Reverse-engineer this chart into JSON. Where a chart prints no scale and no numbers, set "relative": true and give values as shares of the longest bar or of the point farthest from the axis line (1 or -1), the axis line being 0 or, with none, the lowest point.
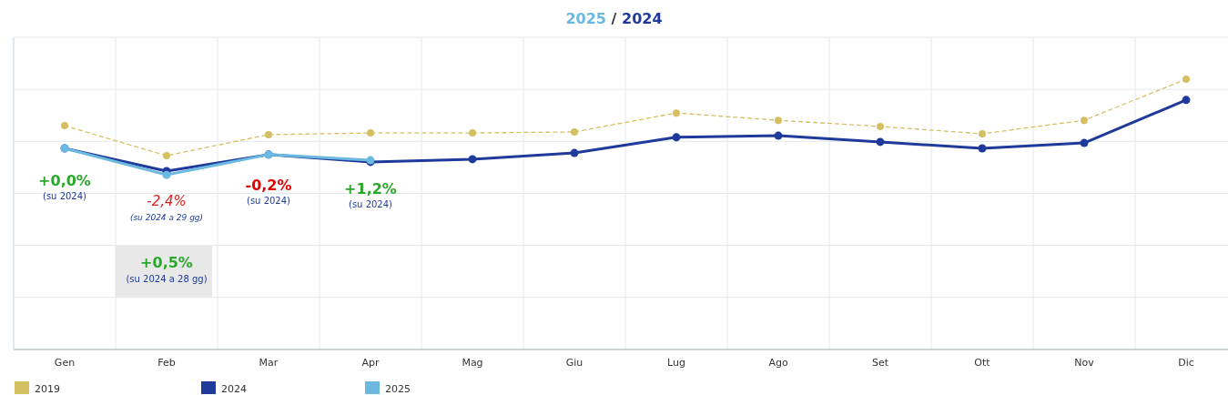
{
  "chart_data": {
    "type": "line",
    "title": "2025 / 2024",
    "relative": true,
    "categories": [
      "Gen",
      "Feb",
      "Mar",
      "Apr",
      "Mag",
      "Giu",
      "Lug",
      "Ago",
      "Set",
      "Ott",
      "Nov",
      "Dic"
    ],
    "series": [
      {
        "name": "2019",
        "color": "#d4c063",
        "line_style": "dashed",
        "values": [
          0.828,
          0.717,
          0.795,
          0.801,
          0.801,
          0.805,
          0.875,
          0.848,
          0.825,
          0.798,
          0.848,
          1
        ]
      },
      {
        "name": "2024",
        "color": "#1f3a9a",
        "line_style": "solid",
        "values": [
          0.744,
          0.66,
          0.721,
          0.694,
          0.704,
          0.727,
          0.785,
          0.791,
          0.768,
          0.744,
          0.764,
          0.923
        ]
      },
      {
        "name": "2025",
        "color": "#6bb8e0",
        "line_style": "solid",
        "values": [
          0.744,
          0.646,
          0.721,
          0.7,
          null,
          null,
          null,
          null,
          null,
          null,
          null,
          null
        ]
      }
    ],
    "annotations": [
      "+0,0%",
      "(su 2024)",
      "-2,4%",
      "(su 2024 a 29 gg)",
      "-0,2%",
      "(su 2024)",
      "+1,2%",
      "(su 2024)",
      "+0,5%",
      "(su 2024 a 28 gg)"
    ],
    "marker": "circle",
    "grid": true,
    "legend": "bottom"
  }
}
